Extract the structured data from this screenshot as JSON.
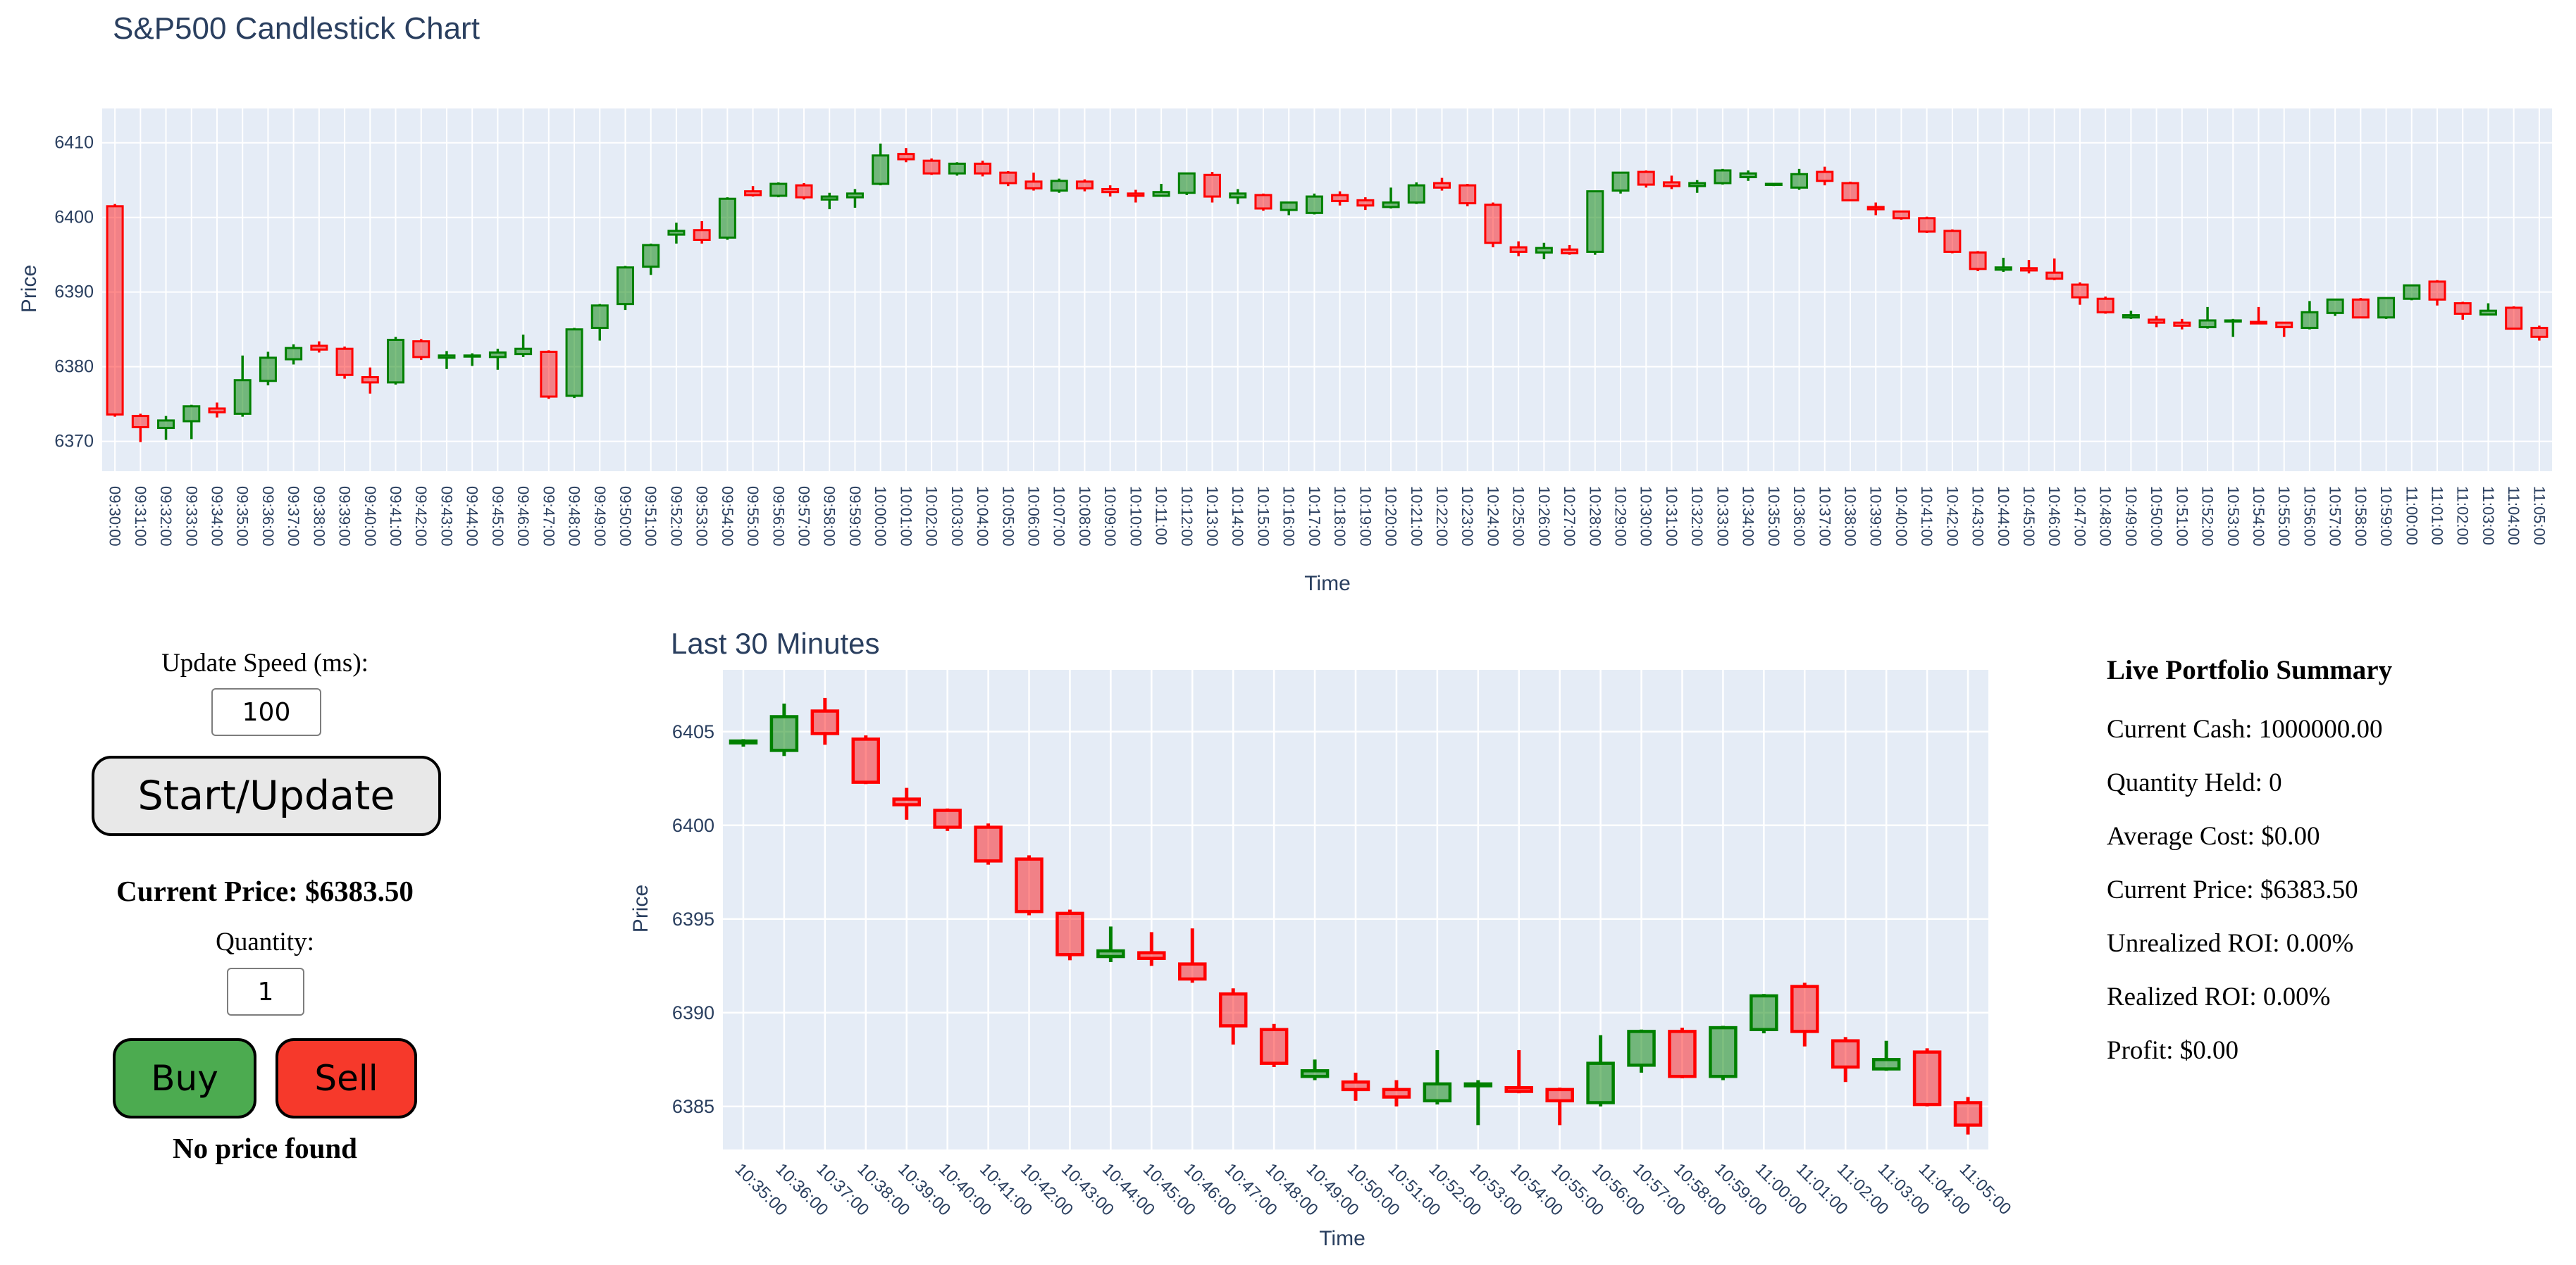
{
  "colors": {
    "plot_bg": "#e5ecf6",
    "grid": "#ffffff",
    "axis_text": "#2a3f5f",
    "increasing": "#008000",
    "decreasing": "#ff0000",
    "increasing_fill": "rgba(0,128,0,0.5)",
    "decreasing_fill": "rgba(255,0,0,0.45)"
  },
  "chart_data": [
    {
      "type": "candlestick",
      "name": "main-chart",
      "title": "S&P500 Candlestick Chart",
      "xlabel": "Time",
      "ylabel": "Price",
      "ylim": [
        6366.0,
        6414.6
      ],
      "yticks": [
        6370,
        6380,
        6390,
        6400,
        6410
      ],
      "grid": true,
      "increasing_color": "green",
      "decreasing_color": "red",
      "x": [
        "09:30:00",
        "09:31:00",
        "09:32:00",
        "09:33:00",
        "09:34:00",
        "09:35:00",
        "09:36:00",
        "09:37:00",
        "09:38:00",
        "09:39:00",
        "09:40:00",
        "09:41:00",
        "09:42:00",
        "09:43:00",
        "09:44:00",
        "09:45:00",
        "09:46:00",
        "09:47:00",
        "09:48:00",
        "09:49:00",
        "09:50:00",
        "09:51:00",
        "09:52:00",
        "09:53:00",
        "09:54:00",
        "09:55:00",
        "09:56:00",
        "09:57:00",
        "09:58:00",
        "09:59:00",
        "10:00:00",
        "10:01:00",
        "10:02:00",
        "10:03:00",
        "10:04:00",
        "10:05:00",
        "10:06:00",
        "10:07:00",
        "10:08:00",
        "10:09:00",
        "10:10:00",
        "10:11:00",
        "10:12:00",
        "10:13:00",
        "10:14:00",
        "10:15:00",
        "10:16:00",
        "10:17:00",
        "10:18:00",
        "10:19:00",
        "10:20:00",
        "10:21:00",
        "10:22:00",
        "10:23:00",
        "10:24:00",
        "10:25:00",
        "10:26:00",
        "10:27:00",
        "10:28:00",
        "10:29:00",
        "10:30:00",
        "10:31:00",
        "10:32:00",
        "10:33:00",
        "10:34:00",
        "10:35:00",
        "10:36:00",
        "10:37:00",
        "10:38:00",
        "10:39:00",
        "10:40:00",
        "10:41:00",
        "10:42:00",
        "10:43:00",
        "10:44:00",
        "10:45:00",
        "10:46:00",
        "10:47:00",
        "10:48:00",
        "10:49:00",
        "10:50:00",
        "10:51:00",
        "10:52:00",
        "10:53:00",
        "10:54:00",
        "10:55:00",
        "10:56:00",
        "10:57:00",
        "10:58:00",
        "10:59:00",
        "11:00:00",
        "11:01:00",
        "11:02:00",
        "11:03:00",
        "11:04:00",
        "11:05:00"
      ],
      "ohlc": [
        [
          6401.5,
          6401.8,
          6373.3,
          6373.6
        ],
        [
          6373.4,
          6373.7,
          6369.9,
          6371.9
        ],
        [
          6371.8,
          6373.4,
          6370.2,
          6372.8
        ],
        [
          6372.7,
          6374.9,
          6370.3,
          6374.7
        ],
        [
          6374.4,
          6375.2,
          6373.2,
          6373.9
        ],
        [
          6373.7,
          6381.5,
          6373.3,
          6378.2
        ],
        [
          6378.1,
          6382.0,
          6377.5,
          6381.2
        ],
        [
          6381.0,
          6383.0,
          6380.3,
          6382.5
        ],
        [
          6382.8,
          6383.4,
          6381.9,
          6382.3
        ],
        [
          6382.4,
          6382.7,
          6378.4,
          6378.9
        ],
        [
          6378.6,
          6379.9,
          6376.4,
          6377.9
        ],
        [
          6377.9,
          6384.0,
          6377.6,
          6383.6
        ],
        [
          6383.4,
          6383.7,
          6380.9,
          6381.3
        ],
        [
          6381.2,
          6382.1,
          6379.7,
          6381.5
        ],
        [
          6381.4,
          6381.8,
          6380.1,
          6381.5
        ],
        [
          6381.3,
          6382.4,
          6379.6,
          6381.9
        ],
        [
          6381.7,
          6384.3,
          6381.3,
          6382.4
        ],
        [
          6382.0,
          6382.2,
          6375.7,
          6376.0
        ],
        [
          6376.1,
          6385.2,
          6375.8,
          6385.0
        ],
        [
          6385.2,
          6388.4,
          6383.5,
          6388.2
        ],
        [
          6388.4,
          6393.5,
          6387.6,
          6393.3
        ],
        [
          6393.4,
          6396.5,
          6392.3,
          6396.3
        ],
        [
          6397.7,
          6399.3,
          6396.5,
          6398.2
        ],
        [
          6398.3,
          6399.5,
          6396.5,
          6397.0
        ],
        [
          6397.3,
          6402.7,
          6397.0,
          6402.5
        ],
        [
          6403.5,
          6404.2,
          6402.8,
          6403.0
        ],
        [
          6402.9,
          6404.7,
          6402.7,
          6404.5
        ],
        [
          6404.3,
          6404.6,
          6402.4,
          6402.7
        ],
        [
          6402.4,
          6403.3,
          6401.1,
          6402.8
        ],
        [
          6402.7,
          6403.8,
          6401.3,
          6403.2
        ],
        [
          6404.5,
          6409.9,
          6404.3,
          6408.3
        ],
        [
          6408.5,
          6409.3,
          6407.4,
          6407.8
        ],
        [
          6407.6,
          6407.9,
          6405.7,
          6405.9
        ],
        [
          6405.9,
          6407.4,
          6405.6,
          6407.2
        ],
        [
          6407.2,
          6407.6,
          6405.5,
          6405.9
        ],
        [
          6406.0,
          6406.2,
          6404.2,
          6404.6
        ],
        [
          6404.8,
          6406.0,
          6403.6,
          6403.9
        ],
        [
          6403.6,
          6405.2,
          6403.3,
          6404.9
        ],
        [
          6404.8,
          6405.1,
          6403.5,
          6403.9
        ],
        [
          6403.8,
          6404.3,
          6402.8,
          6403.4
        ],
        [
          6403.2,
          6403.7,
          6402.0,
          6402.9
        ],
        [
          6402.9,
          6404.5,
          6402.8,
          6403.4
        ],
        [
          6403.3,
          6406.0,
          6403.0,
          6405.9
        ],
        [
          6405.7,
          6406.1,
          6402.0,
          6402.8
        ],
        [
          6402.7,
          6403.8,
          6401.8,
          6403.2
        ],
        [
          6403.0,
          6403.2,
          6400.9,
          6401.2
        ],
        [
          6401.0,
          6402.1,
          6400.3,
          6402.0
        ],
        [
          6400.6,
          6403.2,
          6400.4,
          6402.8
        ],
        [
          6403.0,
          6403.5,
          6401.6,
          6402.2
        ],
        [
          6402.3,
          6402.7,
          6401.0,
          6401.6
        ],
        [
          6401.4,
          6404.0,
          6401.2,
          6402.0
        ],
        [
          6402.0,
          6404.7,
          6401.8,
          6404.3
        ],
        [
          6404.6,
          6405.3,
          6403.6,
          6404.0
        ],
        [
          6404.3,
          6404.5,
          6401.5,
          6401.9
        ],
        [
          6401.7,
          6402.0,
          6396.0,
          6396.6
        ],
        [
          6396.0,
          6396.8,
          6394.8,
          6395.4
        ],
        [
          6395.3,
          6396.6,
          6394.4,
          6395.9
        ],
        [
          6395.7,
          6396.3,
          6395.0,
          6395.2
        ],
        [
          6395.4,
          6403.6,
          6395.0,
          6403.5
        ],
        [
          6403.6,
          6406.1,
          6403.2,
          6406.0
        ],
        [
          6406.1,
          6406.3,
          6404.0,
          6404.4
        ],
        [
          6404.7,
          6405.6,
          6403.8,
          6404.2
        ],
        [
          6404.2,
          6405.0,
          6403.3,
          6404.6
        ],
        [
          6404.6,
          6406.5,
          6404.4,
          6406.3
        ],
        [
          6405.4,
          6406.3,
          6404.9,
          6405.9
        ],
        [
          6404.4,
          6404.6,
          6404.2,
          6404.5
        ],
        [
          6404.0,
          6406.5,
          6403.7,
          6405.8
        ],
        [
          6406.1,
          6406.8,
          6404.3,
          6404.9
        ],
        [
          6404.6,
          6404.8,
          6402.2,
          6402.3
        ],
        [
          6401.4,
          6402.0,
          6400.3,
          6401.1
        ],
        [
          6400.8,
          6400.9,
          6399.7,
          6399.9
        ],
        [
          6399.9,
          6400.1,
          6397.9,
          6398.1
        ],
        [
          6398.2,
          6398.4,
          6395.2,
          6395.4
        ],
        [
          6395.3,
          6395.5,
          6392.8,
          6393.1
        ],
        [
          6393.0,
          6394.6,
          6392.7,
          6393.3
        ],
        [
          6393.2,
          6394.3,
          6392.5,
          6392.9
        ],
        [
          6392.6,
          6394.5,
          6391.6,
          6391.8
        ],
        [
          6391.0,
          6391.3,
          6388.3,
          6389.3
        ],
        [
          6389.1,
          6389.4,
          6387.1,
          6387.3
        ],
        [
          6386.6,
          6387.5,
          6386.4,
          6386.9
        ],
        [
          6386.3,
          6386.8,
          6385.3,
          6385.9
        ],
        [
          6385.9,
          6386.4,
          6385.0,
          6385.5
        ],
        [
          6385.3,
          6388.0,
          6385.1,
          6386.2
        ],
        [
          6386.1,
          6386.4,
          6384.0,
          6386.2
        ],
        [
          6386.0,
          6388.0,
          6385.7,
          6385.8
        ],
        [
          6385.9,
          6386.0,
          6384.0,
          6385.3
        ],
        [
          6385.2,
          6388.8,
          6385.0,
          6387.3
        ],
        [
          6387.2,
          6389.1,
          6386.8,
          6389.0
        ],
        [
          6389.0,
          6389.2,
          6386.5,
          6386.6
        ],
        [
          6386.6,
          6389.3,
          6386.4,
          6389.2
        ],
        [
          6389.1,
          6391.0,
          6388.9,
          6390.9
        ],
        [
          6391.4,
          6391.6,
          6388.2,
          6389.0
        ],
        [
          6388.5,
          6388.7,
          6386.3,
          6387.1
        ],
        [
          6387.0,
          6388.5,
          6386.9,
          6387.5
        ],
        [
          6387.9,
          6388.1,
          6385.0,
          6385.1
        ],
        [
          6385.2,
          6385.5,
          6383.5,
          6384.0
        ]
      ]
    },
    {
      "type": "candlestick",
      "name": "mini-chart",
      "title": "Last 30 Minutes",
      "xlabel": "Time",
      "ylabel": "Price",
      "ylim": [
        6382.7,
        6408.3
      ],
      "yticks": [
        6385,
        6390,
        6395,
        6400,
        6405
      ],
      "grid": true,
      "increasing_color": "green",
      "decreasing_color": "red",
      "x": [
        "10:35:00",
        "10:36:00",
        "10:37:00",
        "10:38:00",
        "10:39:00",
        "10:40:00",
        "10:41:00",
        "10:42:00",
        "10:43:00",
        "10:44:00",
        "10:45:00",
        "10:46:00",
        "10:47:00",
        "10:48:00",
        "10:49:00",
        "10:50:00",
        "10:51:00",
        "10:52:00",
        "10:53:00",
        "10:54:00",
        "10:55:00",
        "10:56:00",
        "10:57:00",
        "10:58:00",
        "10:59:00",
        "11:00:00",
        "11:01:00",
        "11:02:00",
        "11:03:00",
        "11:04:00",
        "11:05:00"
      ],
      "ohlc": [
        [
          6404.4,
          6404.6,
          6404.2,
          6404.5
        ],
        [
          6404.0,
          6406.5,
          6403.7,
          6405.8
        ],
        [
          6406.1,
          6406.8,
          6404.3,
          6404.9
        ],
        [
          6404.6,
          6404.8,
          6402.2,
          6402.3
        ],
        [
          6401.4,
          6402.0,
          6400.3,
          6401.1
        ],
        [
          6400.8,
          6400.9,
          6399.7,
          6399.9
        ],
        [
          6399.9,
          6400.1,
          6397.9,
          6398.1
        ],
        [
          6398.2,
          6398.4,
          6395.2,
          6395.4
        ],
        [
          6395.3,
          6395.5,
          6392.8,
          6393.1
        ],
        [
          6393.0,
          6394.6,
          6392.7,
          6393.3
        ],
        [
          6393.2,
          6394.3,
          6392.5,
          6392.9
        ],
        [
          6392.6,
          6394.5,
          6391.6,
          6391.8
        ],
        [
          6391.0,
          6391.3,
          6388.3,
          6389.3
        ],
        [
          6389.1,
          6389.4,
          6387.1,
          6387.3
        ],
        [
          6386.6,
          6387.5,
          6386.4,
          6386.9
        ],
        [
          6386.3,
          6386.8,
          6385.3,
          6385.9
        ],
        [
          6385.9,
          6386.4,
          6385.0,
          6385.5
        ],
        [
          6385.3,
          6388.0,
          6385.1,
          6386.2
        ],
        [
          6386.1,
          6386.4,
          6384.0,
          6386.2
        ],
        [
          6386.0,
          6388.0,
          6385.7,
          6385.8
        ],
        [
          6385.9,
          6386.0,
          6384.0,
          6385.3
        ],
        [
          6385.2,
          6388.8,
          6385.0,
          6387.3
        ],
        [
          6387.2,
          6389.1,
          6386.8,
          6389.0
        ],
        [
          6389.0,
          6389.2,
          6386.5,
          6386.6
        ],
        [
          6386.6,
          6389.3,
          6386.4,
          6389.2
        ],
        [
          6389.1,
          6391.0,
          6388.9,
          6390.9
        ],
        [
          6391.4,
          6391.6,
          6388.2,
          6389.0
        ],
        [
          6388.5,
          6388.7,
          6386.3,
          6387.1
        ],
        [
          6387.0,
          6388.5,
          6386.9,
          6387.5
        ],
        [
          6387.9,
          6388.1,
          6385.0,
          6385.1
        ],
        [
          6385.2,
          6385.5,
          6383.5,
          6384.0
        ]
      ]
    }
  ],
  "controls": {
    "update_speed_label": "Update Speed (ms):",
    "update_speed_value": "100",
    "start_button": "Start/Update",
    "current_price": "Current Price: $6383.50",
    "quantity_label": "Quantity:",
    "quantity_value": "1",
    "buy_button": "Buy",
    "sell_button": "Sell",
    "status_message": "No price found",
    "start_button_color": "#e8e8e8",
    "buy_color": "#4cab50",
    "sell_color": "#f6392b"
  },
  "portfolio": {
    "title": "Live Portfolio Summary",
    "lines": [
      "Current Cash: 1000000.00",
      "Quantity Held: 0",
      "Average Cost: $0.00",
      "Current Price: $6383.50",
      "Unrealized ROI: 0.00%",
      "Realized ROI: 0.00%",
      "Profit: $0.00"
    ]
  }
}
